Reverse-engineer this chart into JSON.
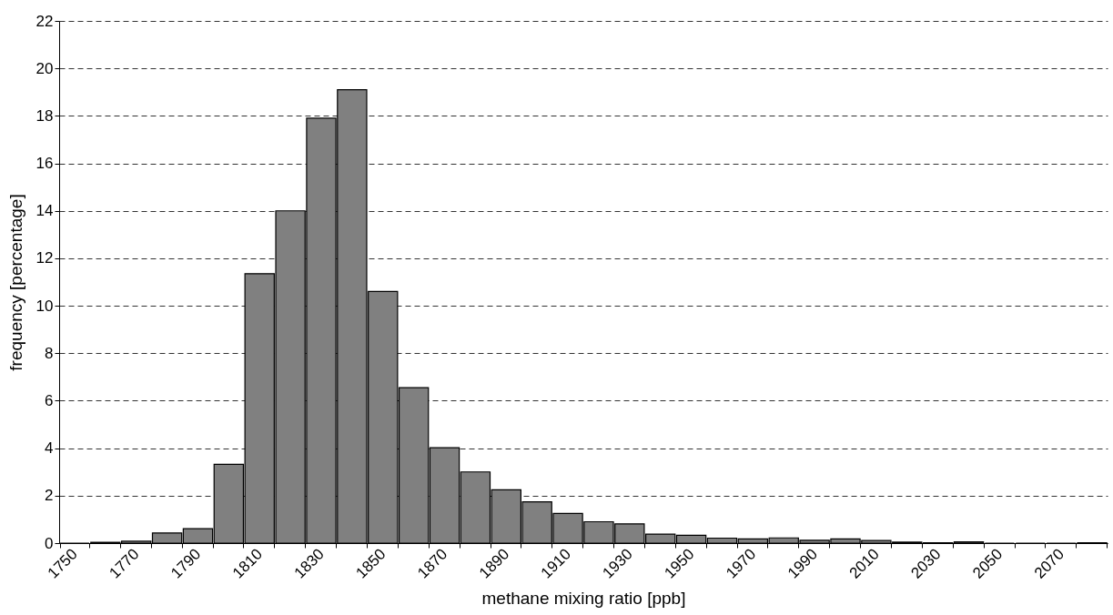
{
  "chart_data": {
    "type": "bar",
    "xlabel": "methane mixing ratio [ppb]",
    "ylabel": "frequency [percentage]",
    "categories": [
      "1750",
      null,
      "1770",
      null,
      "1790",
      null,
      "1810",
      null,
      "1830",
      null,
      "1850",
      null,
      "1870",
      null,
      "1890",
      null,
      "1910",
      null,
      "1930",
      null,
      "1950",
      null,
      "1970",
      null,
      "1990",
      null,
      "2010",
      null,
      "2030",
      null,
      "2050",
      null,
      "2070",
      null
    ],
    "values": [
      0,
      0.03,
      0.08,
      0.43,
      0.61,
      3.32,
      11.35,
      14.0,
      17.9,
      19.1,
      10.6,
      6.55,
      4.02,
      3.0,
      2.25,
      1.74,
      1.25,
      0.9,
      0.81,
      0.38,
      0.33,
      0.21,
      0.18,
      0.22,
      0.12,
      0.18,
      0.11,
      0.04,
      0.02,
      0.05,
      0,
      0,
      0,
      0.02
    ],
    "color": "#808080",
    "ylim": [
      0,
      22
    ],
    "yticks": [
      0,
      2,
      4,
      6,
      8,
      10,
      12,
      14,
      16,
      18,
      20,
      22
    ],
    "grid": "y"
  }
}
